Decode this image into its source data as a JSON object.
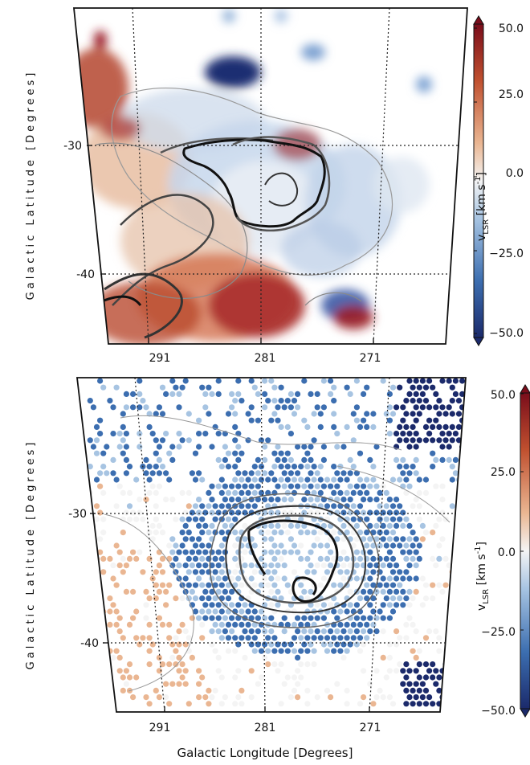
{
  "chart_data": [
    {
      "type": "heatmap",
      "panel": "top",
      "xlabel": "",
      "ylabel": "Galactic  Latitude  [Degrees]",
      "x_ticks": [
        "291",
        "281",
        "271"
      ],
      "y_ticks": [
        "-30",
        "-40"
      ],
      "x_tick_values": [
        291,
        281,
        271
      ],
      "y_tick_values": [
        -30,
        -40
      ],
      "xlim": [
        297,
        264
      ],
      "ylim": [
        -45,
        -20
      ],
      "colorbar": {
        "label": "v_LSR [km s^-1]",
        "label_main": "v",
        "label_sub": "LSR",
        "label_unit": "[km s",
        "label_sup": "-1",
        "label_close": "]",
        "ticks": [
          "50.0",
          "25.0",
          "0.0",
          "−25.0",
          "−50.0"
        ],
        "tick_values": [
          50,
          25,
          0,
          -25,
          -50
        ],
        "range": [
          -50,
          50
        ],
        "colormap": [
          "#1b2a6b",
          "#3c6eb0",
          "#a7c4e2",
          "#f4f4f4",
          "#eab692",
          "#c0502f",
          "#7a0d1b"
        ]
      },
      "grid": true,
      "contours": "black and gray intensity contours"
    },
    {
      "type": "heatmap",
      "panel": "bottom",
      "xlabel": "Galactic Longitude [Degrees]",
      "ylabel": "Galactic  Latitude  [Degrees]",
      "x_ticks": [
        "291",
        "281",
        "271"
      ],
      "y_ticks": [
        "-30",
        "-40"
      ],
      "x_tick_values": [
        291,
        281,
        271
      ],
      "y_tick_values": [
        -30,
        -40
      ],
      "xlim": [
        297,
        264
      ],
      "ylim": [
        -45,
        -20
      ],
      "colorbar": {
        "label": "v_LSR [km s^-1]",
        "label_main": "v",
        "label_sub": "LSR",
        "label_unit": "[km s",
        "label_sup": "-1",
        "label_close": "]",
        "ticks": [
          "50.0",
          "25.0",
          "0.0",
          "−25.0",
          "−50.0"
        ],
        "tick_values": [
          50,
          25,
          0,
          -25,
          -50
        ],
        "range": [
          -50,
          50
        ]
      },
      "grid": true,
      "markers": "hexagonal beam samples"
    }
  ]
}
